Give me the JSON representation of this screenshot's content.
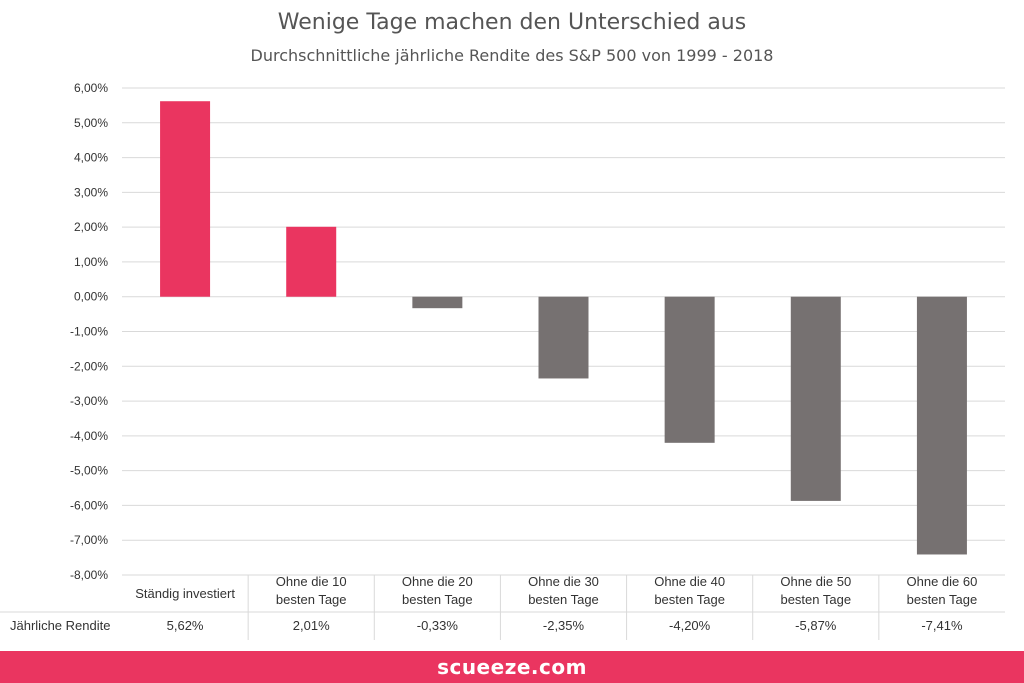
{
  "chart_data": {
    "type": "bar",
    "title": "Wenige Tage machen den Unterschied aus",
    "subtitle": "Durchschnittliche jährliche Rendite des S&P 500 von 1999 - 2018",
    "categories": [
      [
        "Ständig investiert"
      ],
      [
        "Ohne die 10",
        "besten Tage"
      ],
      [
        "Ohne die 20",
        "besten Tage"
      ],
      [
        "Ohne die 30",
        "besten Tage"
      ],
      [
        "Ohne die 40",
        "besten Tage"
      ],
      [
        "Ohne die 50",
        "besten Tage"
      ],
      [
        "Ohne die 60",
        "besten Tage"
      ]
    ],
    "series": [
      {
        "name": "Jährliche Rendite",
        "values": [
          5.62,
          2.01,
          -0.33,
          -2.35,
          -4.2,
          -5.87,
          -7.41
        ]
      }
    ],
    "data_labels": [
      "5,62%",
      "2,01%",
      "-0,33%",
      "-2,35%",
      "-4,20%",
      "-5,87%",
      "-7,41%"
    ],
    "ylim": [
      -8,
      6
    ],
    "yticks": [
      6,
      5,
      4,
      3,
      2,
      1,
      0,
      -1,
      -2,
      -3,
      -4,
      -5,
      -6,
      -7,
      -8
    ],
    "ytick_labels": [
      "6,00%",
      "5,00%",
      "4,00%",
      "3,00%",
      "2,00%",
      "1,00%",
      "0,00%",
      "-1,00%",
      "-2,00%",
      "-3,00%",
      "-4,00%",
      "-5,00%",
      "-6,00%",
      "-7,00%",
      "-8,00%"
    ],
    "grid": true,
    "legend": "none",
    "colors": {
      "positive": "#ea3560",
      "negative": "#767171",
      "grid": "#d9d9d9"
    }
  },
  "footer": {
    "brand": "scueeze.com"
  }
}
